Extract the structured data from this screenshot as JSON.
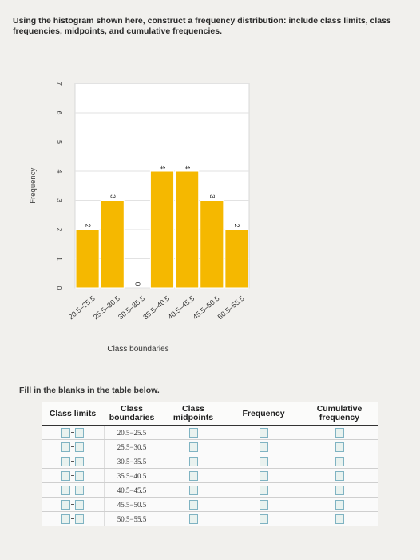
{
  "question": "Using the histogram shown here, construct a frequency distribution: include class limits, class frequencies, midpoints, and cumulative frequencies.",
  "instruction": "Fill in the blanks in the table below.",
  "chart_data": {
    "type": "bar",
    "title": "",
    "xlabel": "Class boundaries",
    "ylabel": "Frequency",
    "ylim": [
      0,
      7
    ],
    "yticks": [
      "0",
      "1",
      "2",
      "3",
      "4",
      "5",
      "6",
      "7"
    ],
    "categories": [
      "20.5–25.5",
      "25.5–30.5",
      "30.5–35.5",
      "35.5–40.5",
      "40.5–45.5",
      "45.5–50.5",
      "50.5–55.5"
    ],
    "values": [
      2,
      3,
      0,
      4,
      4,
      3,
      2
    ],
    "data_labels": [
      "2",
      "3",
      "0",
      "4",
      "4",
      "3",
      "2"
    ],
    "bar_color": "#f5b800",
    "grid": true
  },
  "table": {
    "headers": {
      "limits": "Class limits",
      "boundaries": "Class boundaries",
      "midpoints": "Class midpoints",
      "frequency": "Frequency",
      "cumulative": "Cumulative frequency"
    },
    "boundaries": [
      "20.5−25.5",
      "25.5−30.5",
      "30.5−35.5",
      "35.5−40.5",
      "40.5−45.5",
      "45.5−50.5",
      "50.5−55.5"
    ]
  }
}
